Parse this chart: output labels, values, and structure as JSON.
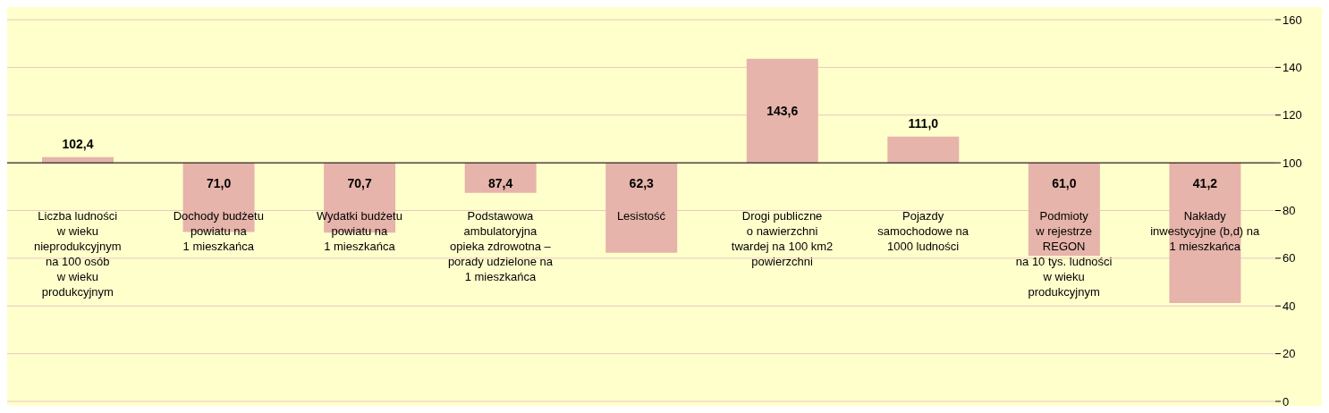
{
  "chart_data": {
    "type": "bar",
    "categories": [
      "Liczba ludności\nw wieku\nnieprodukcyjnym\nna 100 osób\nw wieku\nprodukcyjnym",
      "Dochody budżetu\npowiatu na\n1 mieszkańca",
      "Wydatki budżetu\npowiatu na\n1 mieszkańca",
      "Podstawowa\nambulatoryjna\nopieka zdrowotna –\nporady udzielone na\n1 mieszkańca",
      "Lesistość",
      "Drogi publiczne\no nawierzchni\ntwardej na 100 km2\npowierzchni",
      "Pojazdy\nsamochodowe na\n1000 ludności",
      "Podmioty\nw rejestrze\nREGON\nna 10 tys. ludności\nw wieku\nprodukcyjnym",
      "Nakłady\ninwestycyjne (b,d) na\n1 mieszkańca"
    ],
    "base": [
      100,
      100,
      100,
      100,
      100,
      100,
      100,
      100,
      100
    ],
    "values": [
      2.4,
      -29.0,
      -29.3,
      -12.6,
      -37.7,
      43.6,
      11.0,
      -39.0,
      -58.8
    ],
    "value_labels": [
      "102,4",
      "71,0",
      "70,7",
      "87,4",
      "62,3",
      "143,6",
      "111,0",
      "61,0",
      "41,2"
    ],
    "color": "#e6b4aa",
    "ylim": [
      0,
      160
    ],
    "yticks": [
      0,
      20,
      40,
      60,
      80,
      100,
      120,
      140,
      160
    ],
    "grid": "y",
    "ref_lines": [
      {
        "axis": "y",
        "value": 100,
        "color": "#000000"
      }
    ]
  }
}
